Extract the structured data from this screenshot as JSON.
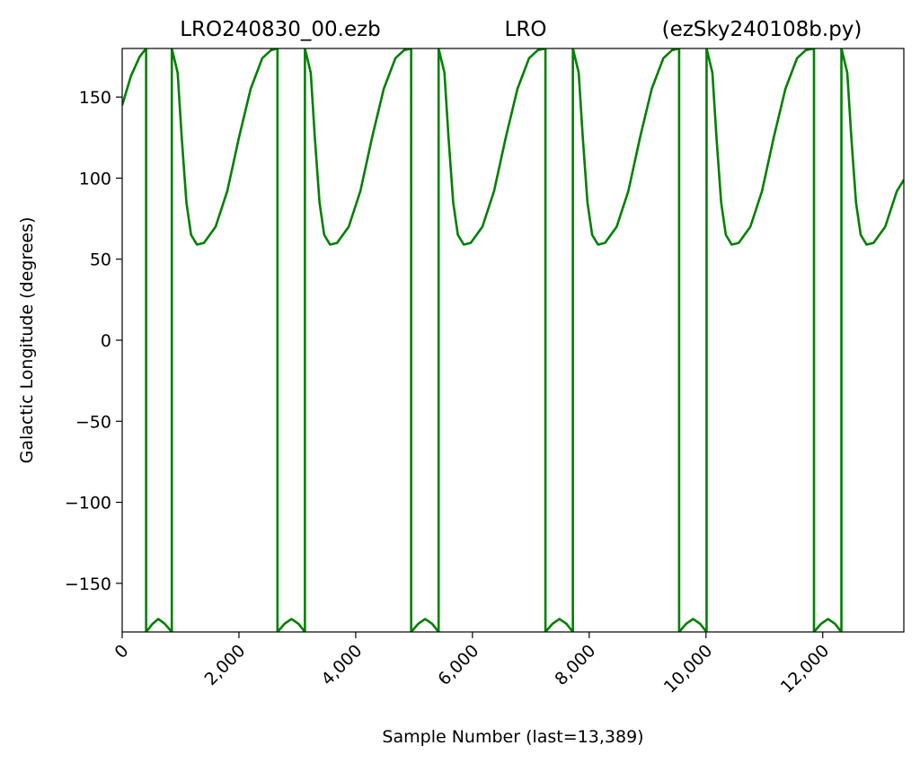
{
  "chart_data": {
    "type": "line",
    "title_parts": [
      "LRO240830_00.ezb",
      "LRO",
      "(ezSky240108b.py)"
    ],
    "xlabel": "Sample Number (last=13,389)",
    "ylabel": "Galactic Longitude (degrees)",
    "xlim": [
      0,
      13389
    ],
    "ylim": [
      -180,
      180
    ],
    "x_ticks": [
      0,
      2000,
      4000,
      6000,
      8000,
      10000,
      12000
    ],
    "x_tick_labels": [
      "0",
      "2,000",
      "4,000",
      "6,000",
      "8,000",
      "10,000",
      "12,000"
    ],
    "y_ticks": [
      150,
      100,
      50,
      0,
      -50,
      -100,
      -150
    ],
    "y_tick_labels": [
      "150",
      "100",
      "50",
      "0",
      "−50",
      "−100",
      "−150"
    ],
    "grid": false,
    "series_color": "#008000",
    "series": [
      {
        "x": [
          0,
          150,
          300,
          410,
          410,
          520,
          620,
          730,
          850,
          850,
          950,
          1020,
          1100,
          1180,
          1280,
          1400,
          1600,
          1800,
          2000,
          2200,
          2400,
          2550,
          2660,
          2660,
          2780,
          2900,
          3020,
          3130,
          3130,
          3230,
          3300,
          3380,
          3460,
          3560,
          3680,
          3880,
          4080,
          4280,
          4480,
          4680,
          4830,
          4950,
          4950,
          5070,
          5190,
          5310,
          5420,
          5420,
          5520,
          5590,
          5670,
          5750,
          5850,
          5970,
          6170,
          6370,
          6570,
          6770,
          6970,
          7120,
          7250,
          7250,
          7370,
          7490,
          7610,
          7720,
          7720,
          7820,
          7890,
          7970,
          8050,
          8150,
          8270,
          8470,
          8670,
          8870,
          9070,
          9270,
          9420,
          9540,
          9540,
          9660,
          9780,
          9900,
          10010,
          10010,
          10110,
          10180,
          10260,
          10340,
          10440,
          10560,
          10760,
          10960,
          11160,
          11360,
          11560,
          11710,
          11850,
          11850,
          11970,
          12090,
          12210,
          12320,
          12320,
          12420,
          12490,
          12570,
          12650,
          12750,
          12870,
          13070,
          13270,
          13389
        ],
        "y": [
          145,
          163,
          175,
          180,
          -180,
          -175,
          -172,
          -175,
          -180,
          180,
          165,
          125,
          85,
          65,
          59,
          60,
          70,
          92,
          125,
          155,
          174,
          179,
          180,
          -180,
          -175,
          -172,
          -175,
          -180,
          180,
          165,
          125,
          85,
          65,
          59,
          60,
          70,
          92,
          125,
          155,
          174,
          179,
          180,
          -180,
          -175,
          -172,
          -175,
          -180,
          180,
          165,
          125,
          85,
          65,
          59,
          60,
          70,
          92,
          125,
          155,
          174,
          179,
          180,
          -180,
          -175,
          -172,
          -175,
          -180,
          180,
          165,
          125,
          85,
          65,
          59,
          60,
          70,
          92,
          125,
          155,
          174,
          179,
          180,
          -180,
          -175,
          -172,
          -175,
          -180,
          180,
          165,
          125,
          85,
          65,
          59,
          60,
          70,
          92,
          125,
          155,
          174,
          179,
          180,
          -180,
          -175,
          -172,
          -175,
          -180,
          180,
          165,
          125,
          85,
          65,
          59,
          60,
          70,
          92,
          99
        ]
      }
    ]
  }
}
